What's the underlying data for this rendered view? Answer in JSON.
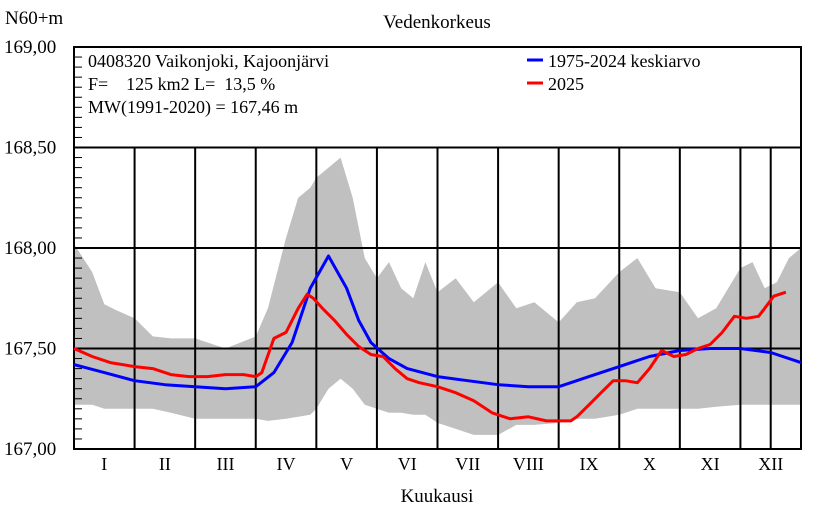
{
  "chart_data": {
    "type": "line",
    "title": "Vedenkorkeus",
    "ylabel": "N60+m",
    "xlabel": "Kuukausi",
    "ylim": [
      167.0,
      169.0
    ],
    "yticks": [
      167.0,
      167.5,
      168.0,
      168.5,
      169.0
    ],
    "ytick_labels": [
      "167,00",
      "167,50",
      "168,00",
      "168,50",
      "169,00"
    ],
    "xlim": [
      0,
      12
    ],
    "months": [
      "I",
      "II",
      "III",
      "IV",
      "V",
      "VI",
      "VII",
      "VIII",
      "IX",
      "X",
      "XI",
      "XII"
    ],
    "info": [
      "0408320 Vaikonjoki, Kajoonjärvi",
      "F=    125 km2 L=  13,5 %",
      "MW(1991-2020) = 167,46 m"
    ],
    "legend": [
      {
        "label": "1975-2024 keskiarvo",
        "color": "#0000ff"
      },
      {
        "label": "2025",
        "color": "#ff0000"
      }
    ],
    "current_day_marker": 11.5,
    "range_band": {
      "name": "1975-2024 min-max",
      "color": "#c0c0c0",
      "x": [
        0,
        0.3,
        0.5,
        0.7,
        1.0,
        1.3,
        1.6,
        2.0,
        2.5,
        3.0,
        3.2,
        3.5,
        3.7,
        3.9,
        4.0,
        4.2,
        4.4,
        4.6,
        4.8,
        5.0,
        5.2,
        5.4,
        5.6,
        5.8,
        6.0,
        6.3,
        6.6,
        7.0,
        7.3,
        7.6,
        8.0,
        8.3,
        8.6,
        9.0,
        9.3,
        9.6,
        10.0,
        10.3,
        10.6,
        11.0,
        11.2,
        11.4,
        11.6,
        11.8,
        12.0
      ],
      "upper": [
        168.02,
        167.88,
        167.72,
        167.69,
        167.65,
        167.56,
        167.55,
        167.55,
        167.5,
        167.56,
        167.7,
        168.05,
        168.25,
        168.3,
        168.35,
        168.4,
        168.45,
        168.25,
        167.95,
        167.85,
        167.93,
        167.8,
        167.75,
        167.93,
        167.78,
        167.85,
        167.73,
        167.83,
        167.7,
        167.73,
        167.63,
        167.73,
        167.75,
        167.88,
        167.95,
        167.8,
        167.78,
        167.65,
        167.7,
        167.9,
        167.93,
        167.8,
        167.83,
        167.95,
        168.0
      ],
      "lower": [
        167.22,
        167.22,
        167.2,
        167.2,
        167.2,
        167.2,
        167.18,
        167.15,
        167.15,
        167.15,
        167.14,
        167.15,
        167.16,
        167.17,
        167.2,
        167.3,
        167.35,
        167.3,
        167.22,
        167.2,
        167.18,
        167.18,
        167.17,
        167.17,
        167.13,
        167.1,
        167.07,
        167.07,
        167.12,
        167.12,
        167.13,
        167.15,
        167.15,
        167.17,
        167.2,
        167.2,
        167.2,
        167.2,
        167.21,
        167.22,
        167.22,
        167.22,
        167.22,
        167.22,
        167.22
      ]
    },
    "series": [
      {
        "name": "1975-2024 keskiarvo",
        "color": "#0000ff",
        "x": [
          0,
          0.5,
          1.0,
          1.5,
          2.0,
          2.5,
          3.0,
          3.3,
          3.6,
          3.9,
          4.2,
          4.5,
          4.7,
          4.9,
          5.2,
          5.5,
          6.0,
          6.5,
          7.0,
          7.5,
          8.0,
          8.5,
          9.0,
          9.5,
          10.0,
          10.5,
          11.0,
          11.5,
          12.0
        ],
        "values": [
          167.42,
          167.38,
          167.34,
          167.32,
          167.31,
          167.3,
          167.31,
          167.38,
          167.53,
          167.8,
          167.96,
          167.8,
          167.64,
          167.53,
          167.45,
          167.4,
          167.36,
          167.34,
          167.32,
          167.31,
          167.31,
          167.36,
          167.41,
          167.46,
          167.49,
          167.5,
          167.5,
          167.48,
          167.43
        ]
      },
      {
        "name": "2025",
        "color": "#ff0000",
        "x": [
          0,
          0.3,
          0.6,
          1.0,
          1.3,
          1.6,
          1.9,
          2.2,
          2.5,
          2.8,
          3.0,
          3.1,
          3.3,
          3.5,
          3.7,
          3.85,
          3.95,
          4.1,
          4.3,
          4.5,
          4.7,
          4.9,
          5.1,
          5.3,
          5.5,
          5.7,
          6.0,
          6.3,
          6.6,
          6.9,
          7.2,
          7.5,
          7.8,
          8.0,
          8.2,
          8.3,
          8.5,
          8.7,
          8.9,
          9.1,
          9.3,
          9.5,
          9.7,
          9.9,
          10.1,
          10.3,
          10.5,
          10.7,
          10.9,
          11.1,
          11.3,
          11.4,
          11.5,
          11.55,
          11.65,
          11.75
        ],
        "values": [
          167.5,
          167.46,
          167.43,
          167.41,
          167.4,
          167.37,
          167.36,
          167.36,
          167.37,
          167.37,
          167.36,
          167.38,
          167.55,
          167.58,
          167.7,
          167.77,
          167.75,
          167.7,
          167.64,
          167.57,
          167.51,
          167.47,
          167.46,
          167.4,
          167.35,
          167.33,
          167.31,
          167.28,
          167.24,
          167.18,
          167.15,
          167.16,
          167.14,
          167.14,
          167.14,
          167.16,
          167.22,
          167.28,
          167.34,
          167.34,
          167.33,
          167.4,
          167.49,
          167.46,
          167.47,
          167.5,
          167.52,
          167.58,
          167.66,
          167.65,
          167.66,
          167.7,
          167.74,
          167.76,
          167.77,
          167.78
        ]
      }
    ]
  }
}
